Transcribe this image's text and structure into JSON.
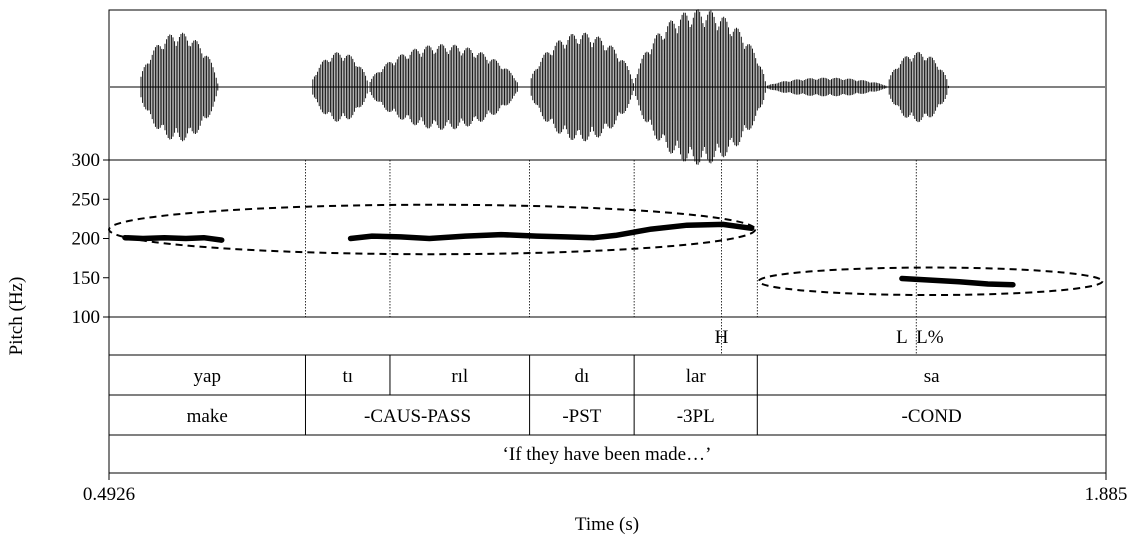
{
  "chart_data": {
    "type": "line",
    "xlabel": "Time (s)",
    "ylabel": "Pitch (Hz)",
    "xlim": [
      0.4926,
      1.885
    ],
    "ylim": [
      100,
      300
    ],
    "x_tick_labels": [
      "0.4926",
      "1.885"
    ],
    "y_ticks": [
      {
        "value": 100,
        "label": "100"
      },
      {
        "value": 150,
        "label": "150"
      },
      {
        "value": 200,
        "label": "200"
      },
      {
        "value": 250,
        "label": "250"
      },
      {
        "value": 300,
        "label": "300"
      }
    ],
    "pitch_segments": [
      {
        "x": [
          0.515,
          0.54,
          0.57,
          0.6,
          0.625,
          0.65
        ],
        "y": [
          201,
          200,
          201,
          200,
          201,
          198
        ]
      },
      {
        "x": [
          0.83,
          0.86,
          0.9,
          0.94,
          0.99,
          1.04,
          1.09,
          1.13,
          1.17,
          1.2,
          1.25,
          1.3,
          1.35,
          1.39
        ],
        "y": [
          200,
          203,
          202,
          200,
          203,
          205,
          203,
          202,
          201,
          204,
          212,
          217,
          218,
          213
        ]
      },
      {
        "x": [
          1.6,
          1.64,
          1.68,
          1.72,
          1.755
        ],
        "y": [
          149,
          147,
          145,
          142,
          141
        ]
      }
    ],
    "ellipses": [
      {
        "t_min": 0.4926,
        "t_max": 1.395,
        "hz_min": 180,
        "hz_max": 243
      },
      {
        "t_min": 1.4,
        "t_max": 1.88,
        "hz_min": 128,
        "hz_max": 163
      }
    ],
    "boundaries": [
      0.767,
      0.885,
      1.08,
      1.226,
      1.398
    ],
    "tone_points": [
      1.348,
      1.62
    ],
    "tones": [
      {
        "label": "H",
        "t": 1.348
      },
      {
        "label": "L",
        "t": 1.6
      },
      {
        "label": "L%",
        "t": 1.639
      }
    ],
    "syllables": [
      {
        "label": "yap",
        "start": 0.4926,
        "end": 0.767
      },
      {
        "label": "tı",
        "start": 0.767,
        "end": 0.885
      },
      {
        "label": "rıl",
        "start": 0.885,
        "end": 1.08
      },
      {
        "label": "dı",
        "start": 1.08,
        "end": 1.226
      },
      {
        "label": "lar",
        "start": 1.226,
        "end": 1.398
      },
      {
        "label": "sa",
        "start": 1.398,
        "end": 1.885
      }
    ],
    "glosses": [
      {
        "label": "make",
        "start": 0.4926,
        "end": 0.767
      },
      {
        "label": "-CAUS-PASS",
        "start": 0.767,
        "end": 1.08
      },
      {
        "label": "-PST",
        "start": 1.08,
        "end": 1.226
      },
      {
        "label": "-3PL",
        "start": 1.226,
        "end": 1.398
      },
      {
        "label": "-COND",
        "start": 1.398,
        "end": 1.885
      }
    ],
    "translation": "‘If they have been made…’",
    "waveform_bursts": [
      {
        "t_start": 0.535,
        "t_end": 0.645,
        "amplitude": 0.7
      },
      {
        "t_start": 0.775,
        "t_end": 0.855,
        "amplitude": 0.45
      },
      {
        "t_start": 0.855,
        "t_end": 1.065,
        "amplitude": 0.55
      },
      {
        "t_start": 1.08,
        "t_end": 1.226,
        "amplitude": 0.7
      },
      {
        "t_start": 1.226,
        "t_end": 1.41,
        "amplitude": 1.0
      },
      {
        "t_start": 1.41,
        "t_end": 1.58,
        "amplitude": 0.12
      },
      {
        "t_start": 1.58,
        "t_end": 1.665,
        "amplitude": 0.45
      }
    ]
  }
}
